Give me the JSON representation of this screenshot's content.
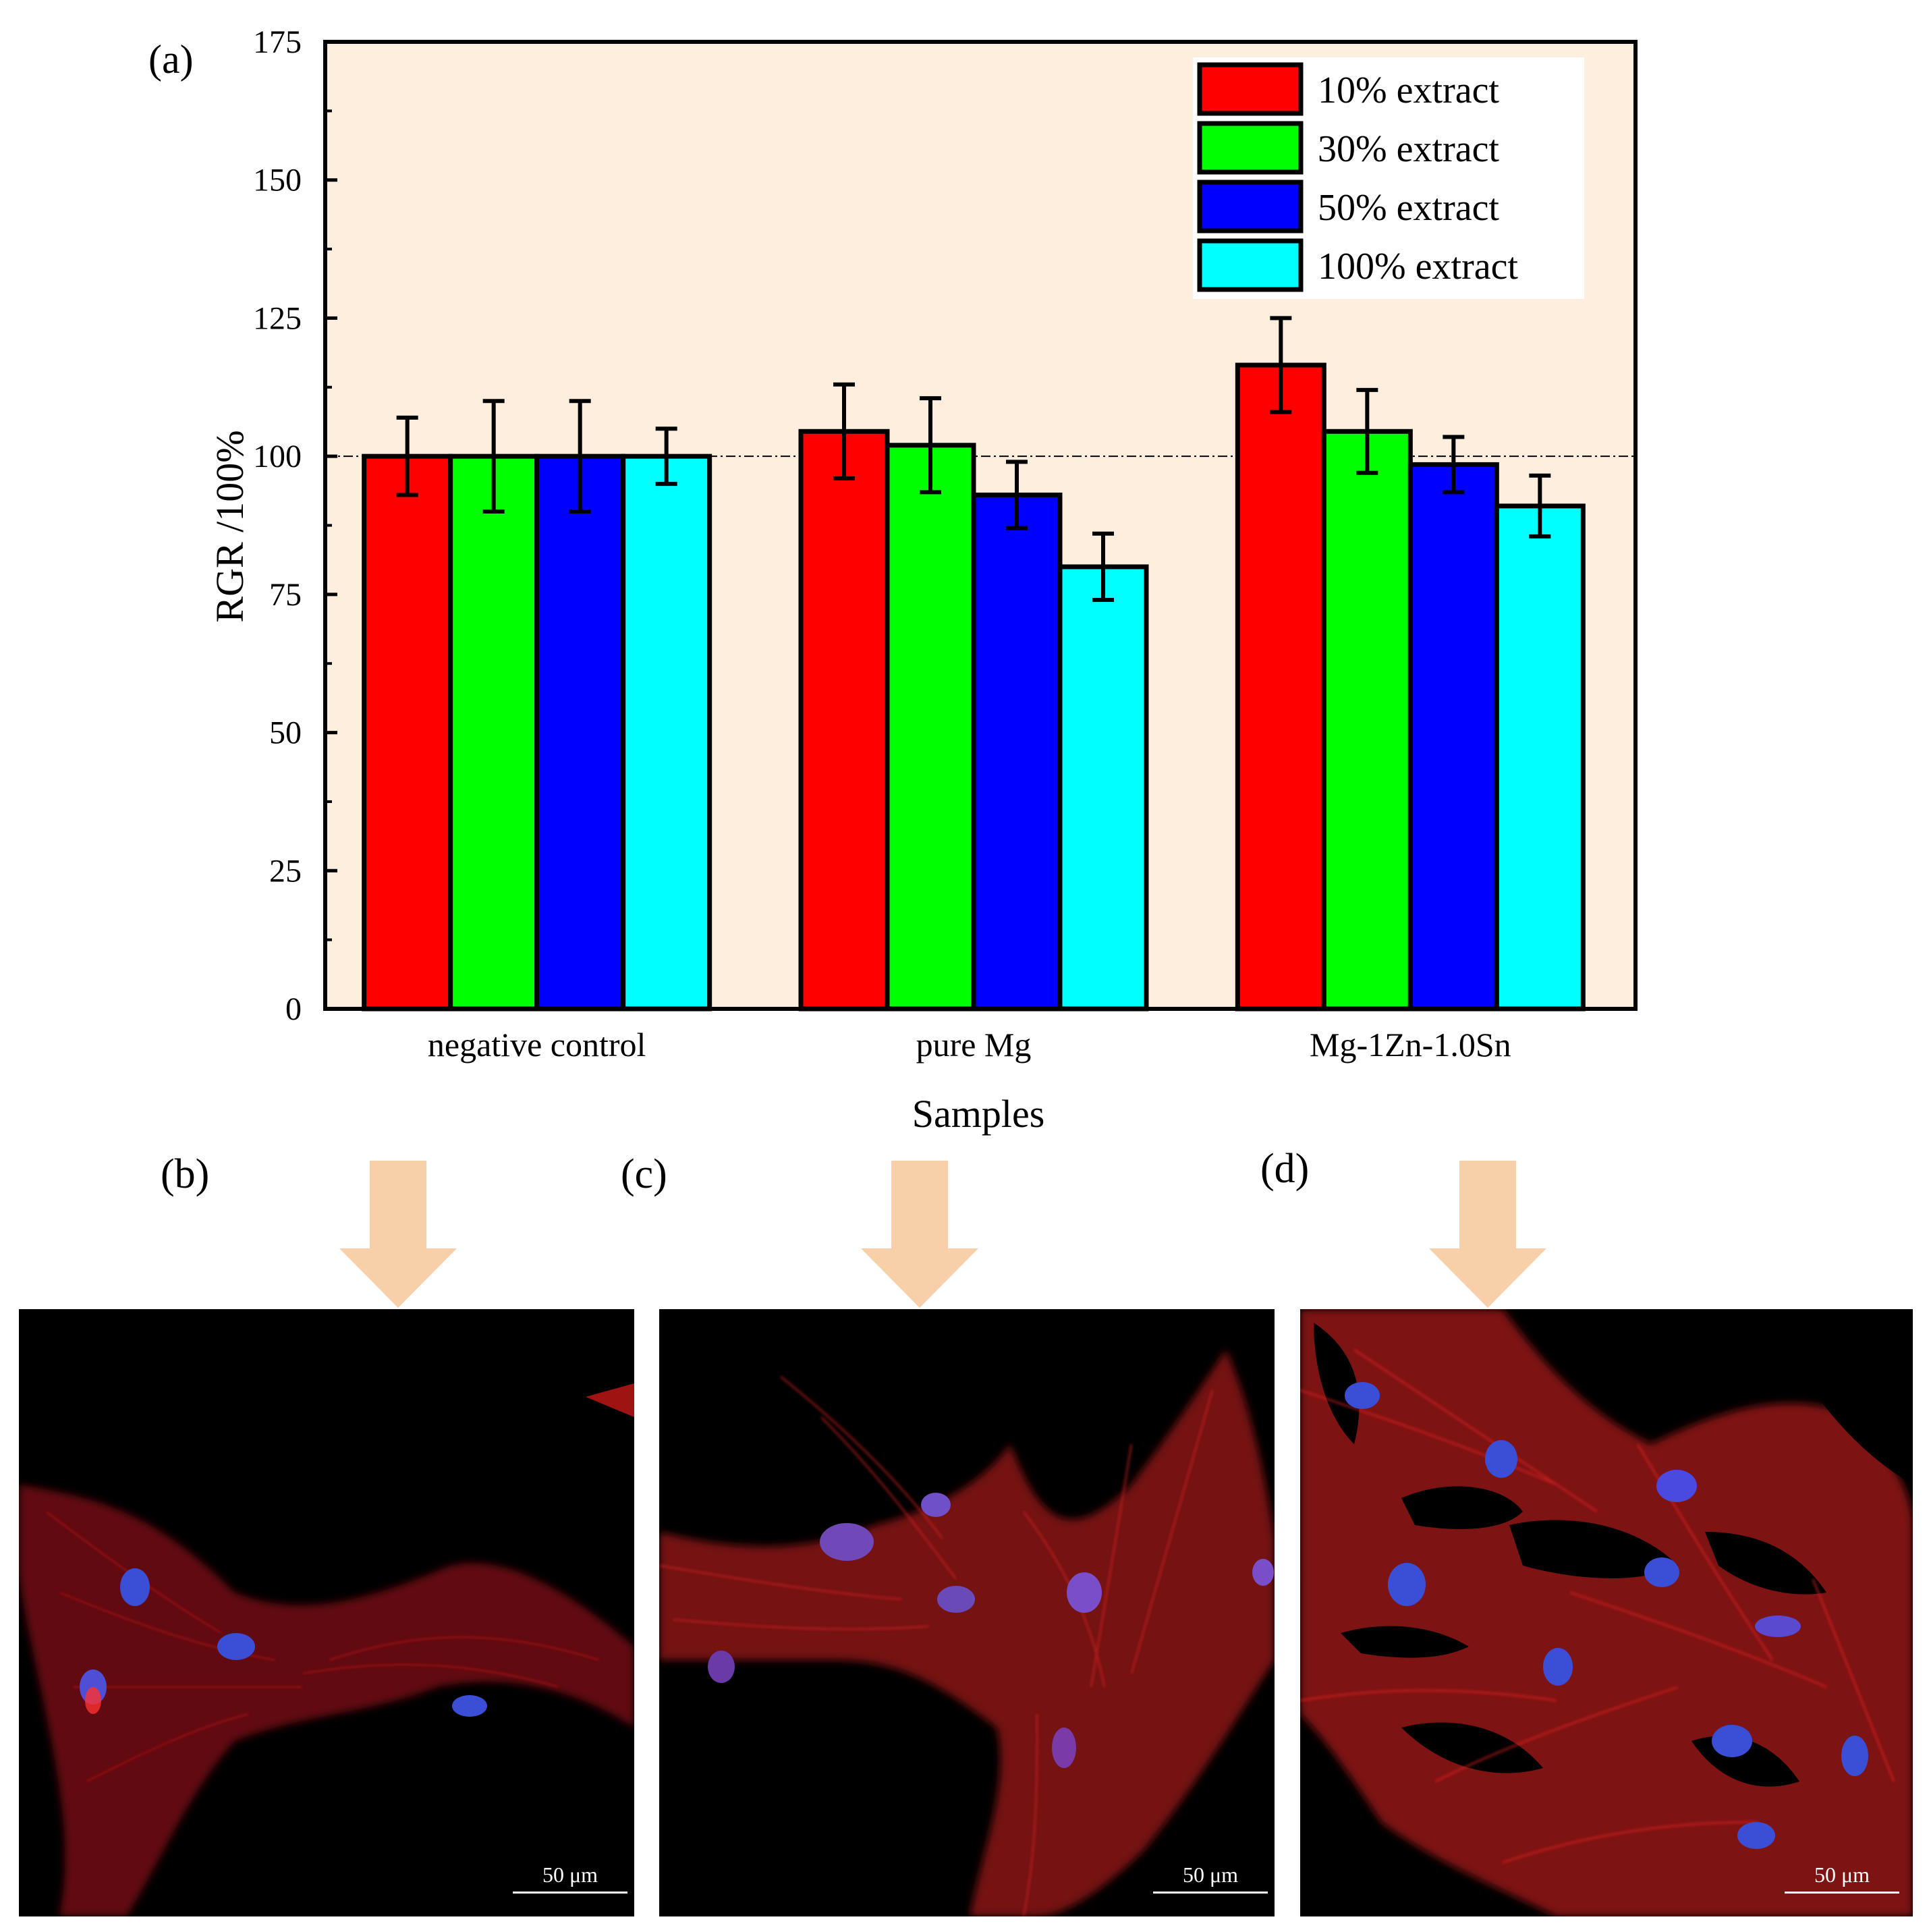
{
  "panel_labels": {
    "a": "(a)",
    "b": "(b)",
    "c": "(c)",
    "d": "(d)"
  },
  "chart_data": {
    "type": "bar",
    "title": "",
    "xlabel": "Samples",
    "ylabel": "RGR /100%",
    "ylim": [
      0,
      175
    ],
    "yticks": [
      0,
      25,
      50,
      75,
      100,
      125,
      150,
      175
    ],
    "reference_line": 100,
    "categories": [
      "negative control",
      "pure Mg",
      "Mg-1Zn-1.0Sn"
    ],
    "series": [
      {
        "name": "10% extract",
        "color": "#ff0000",
        "values": [
          100,
          104.5,
          116.5
        ],
        "errors": [
          7,
          8.5,
          8.5
        ]
      },
      {
        "name": "30% extract",
        "color": "#00ff00",
        "values": [
          100,
          102,
          104.5
        ],
        "errors": [
          10,
          8.5,
          7.5
        ]
      },
      {
        "name": "50% extract",
        "color": "#0000ff",
        "values": [
          100,
          93,
          98.5
        ],
        "errors": [
          10,
          6,
          5
        ]
      },
      {
        "name": "100% extract",
        "color": "#00ffff",
        "values": [
          100,
          80,
          91
        ],
        "errors": [
          5,
          6,
          5.5
        ]
      }
    ],
    "legend_position": "top-right",
    "plot_background": "#fdeedd"
  },
  "micrographs": [
    {
      "label": "(b)",
      "scale": "50 μm",
      "sample": "negative control"
    },
    {
      "label": "(c)",
      "scale": "50 μm",
      "sample": "pure Mg"
    },
    {
      "label": "(d)",
      "scale": "50 μm",
      "sample": "Mg-1Zn-1.0Sn"
    }
  ],
  "colors": {
    "arrow": "#f7cfa9",
    "stain_actin": "#e01818",
    "stain_nuclei": "#3a4fd6"
  }
}
